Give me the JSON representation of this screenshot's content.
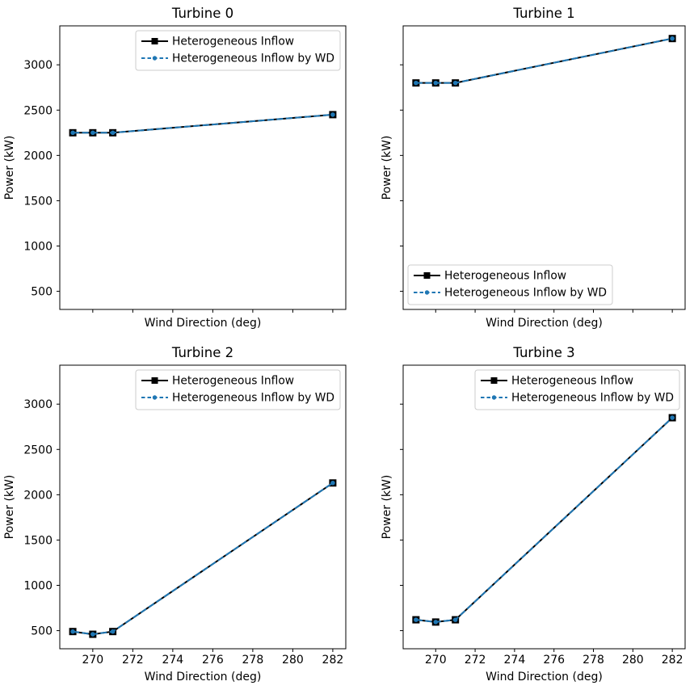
{
  "figure": {
    "background": "#ffffff",
    "axis_color": "#000000",
    "legend_border_color": "#cccccc"
  },
  "chart_data": [
    {
      "type": "line",
      "title": "Turbine 0",
      "xlabel": "Wind Direction (deg)",
      "ylabel": "Power (kW)",
      "x": [
        269,
        270,
        271,
        282
      ],
      "series": [
        {
          "name": "Heterogeneous Inflow",
          "values": [
            2250,
            2250,
            2250,
            2450
          ],
          "color": "#000000",
          "linestyle": "solid",
          "marker": "square"
        },
        {
          "name": "Heterogeneous Inflow by WD",
          "values": [
            2250,
            2250,
            2250,
            2450
          ],
          "color": "#1f77b4",
          "linestyle": "dashed",
          "marker": "dot"
        }
      ],
      "xlim": [
        268.35,
        282.65
      ],
      "ylim": [
        300,
        3430
      ],
      "xticks": [
        270,
        272,
        274,
        276,
        278,
        280,
        282
      ],
      "yticks": [
        500,
        1000,
        1500,
        2000,
        2500,
        3000
      ],
      "show_xtick_labels": false,
      "show_ytick_labels": true,
      "grid": false,
      "legend_loc": "upper right"
    },
    {
      "type": "line",
      "title": "Turbine 1",
      "xlabel": "Wind Direction (deg)",
      "ylabel": "Power (kW)",
      "x": [
        269,
        270,
        271,
        282
      ],
      "series": [
        {
          "name": "Heterogeneous Inflow",
          "values": [
            2800,
            2800,
            2800,
            3290
          ],
          "color": "#000000",
          "linestyle": "solid",
          "marker": "square"
        },
        {
          "name": "Heterogeneous Inflow by WD",
          "values": [
            2800,
            2800,
            2800,
            3290
          ],
          "color": "#1f77b4",
          "linestyle": "dashed",
          "marker": "dot"
        }
      ],
      "xlim": [
        268.35,
        282.65
      ],
      "ylim": [
        300,
        3430
      ],
      "xticks": [
        270,
        272,
        274,
        276,
        278,
        280,
        282
      ],
      "yticks": [
        500,
        1000,
        1500,
        2000,
        2500,
        3000
      ],
      "show_xtick_labels": false,
      "show_ytick_labels": false,
      "grid": false,
      "legend_loc": "lower left"
    },
    {
      "type": "line",
      "title": "Turbine 2",
      "xlabel": "Wind Direction (deg)",
      "ylabel": "Power (kW)",
      "x": [
        269,
        270,
        271,
        282
      ],
      "series": [
        {
          "name": "Heterogeneous Inflow",
          "values": [
            490,
            460,
            490,
            2130
          ],
          "color": "#000000",
          "linestyle": "solid",
          "marker": "square"
        },
        {
          "name": "Heterogeneous Inflow by WD",
          "values": [
            490,
            460,
            490,
            2130
          ],
          "color": "#1f77b4",
          "linestyle": "dashed",
          "marker": "dot"
        }
      ],
      "xlim": [
        268.35,
        282.65
      ],
      "ylim": [
        300,
        3430
      ],
      "xticks": [
        270,
        272,
        274,
        276,
        278,
        280,
        282
      ],
      "yticks": [
        500,
        1000,
        1500,
        2000,
        2500,
        3000
      ],
      "show_xtick_labels": true,
      "show_ytick_labels": true,
      "grid": false,
      "legend_loc": "upper right"
    },
    {
      "type": "line",
      "title": "Turbine 3",
      "xlabel": "Wind Direction (deg)",
      "ylabel": "Power (kW)",
      "x": [
        269,
        270,
        271,
        282
      ],
      "series": [
        {
          "name": "Heterogeneous Inflow",
          "values": [
            620,
            595,
            620,
            2850
          ],
          "color": "#000000",
          "linestyle": "solid",
          "marker": "square"
        },
        {
          "name": "Heterogeneous Inflow by WD",
          "values": [
            620,
            595,
            620,
            2850
          ],
          "color": "#1f77b4",
          "linestyle": "dashed",
          "marker": "dot"
        }
      ],
      "xlim": [
        268.35,
        282.65
      ],
      "ylim": [
        300,
        3430
      ],
      "xticks": [
        270,
        272,
        274,
        276,
        278,
        280,
        282
      ],
      "yticks": [
        500,
        1000,
        1500,
        2000,
        2500,
        3000
      ],
      "show_xtick_labels": true,
      "show_ytick_labels": false,
      "grid": false,
      "legend_loc": "upper right"
    }
  ]
}
